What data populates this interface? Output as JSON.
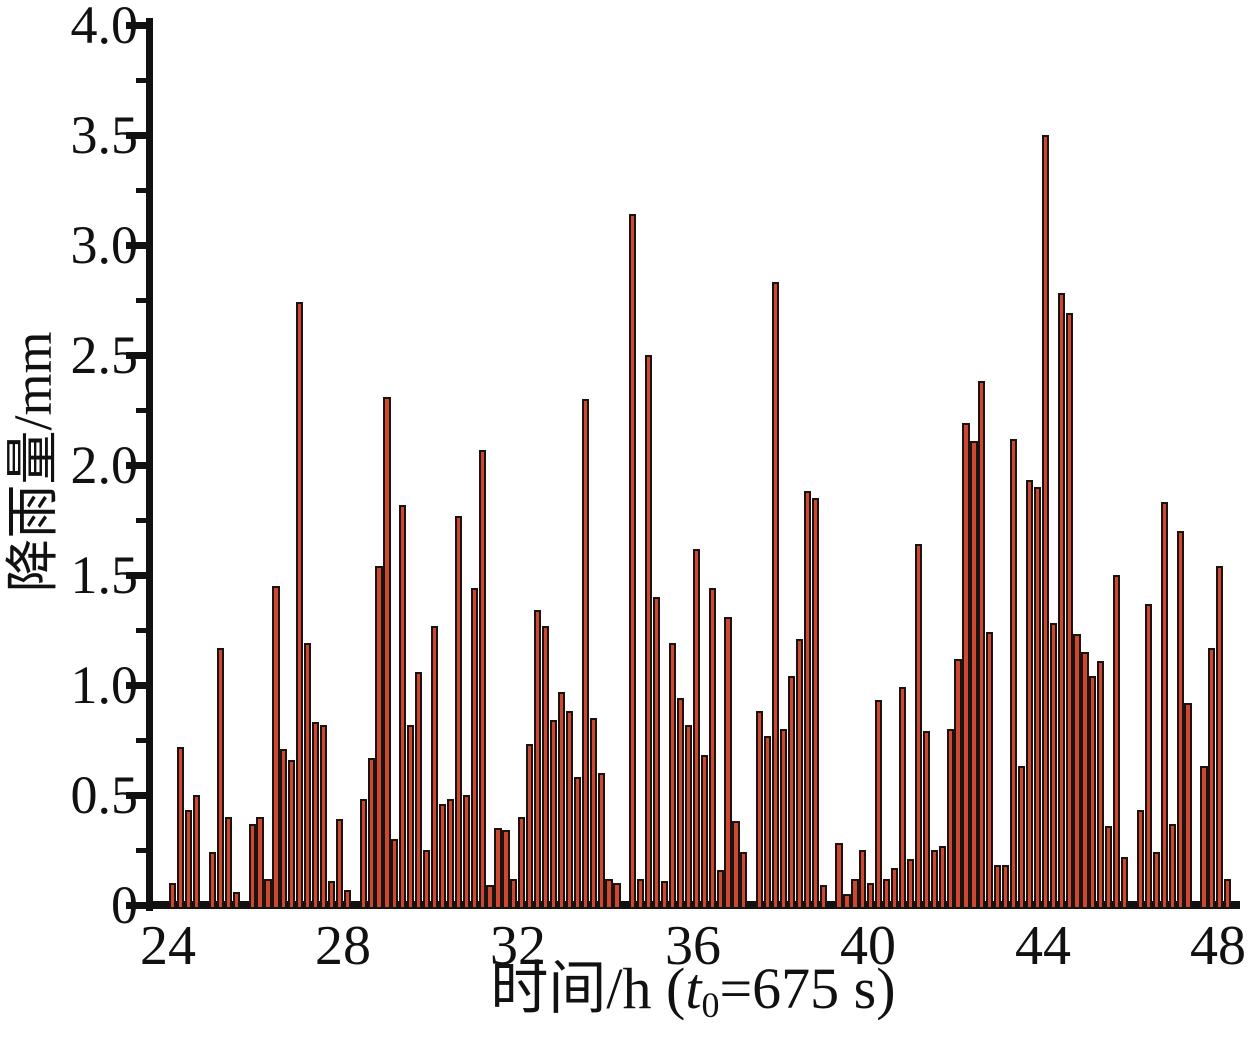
{
  "figure": {
    "y_axis_title": "降雨量/mm",
    "x_axis_title_full": "时间/h (t0=675 s)",
    "x_axis_title_prefix": "时间/h (",
    "x_axis_title_var": "t",
    "x_axis_title_sub": "0",
    "x_axis_title_suffix": "=675 s)"
  },
  "chart_data": {
    "type": "bar",
    "title": "",
    "xlabel": "时间/h (t0=675 s)",
    "ylabel": "降雨量/mm",
    "ylim": [
      0,
      4.0
    ],
    "xlim": [
      23.9,
      48.4
    ],
    "grid": false,
    "legend": null,
    "y_tick_step_major": 0.5,
    "y_tick_step_minor": 0.25,
    "y_tick_labels": [
      "0",
      "0.5",
      "1.0",
      "1.5",
      "2.0",
      "2.5",
      "3.0",
      "3.5",
      "4.0"
    ],
    "x_tick_labels": [
      "24",
      "28",
      "32",
      "36",
      "40",
      "44",
      "48"
    ],
    "x_ticks_hours": [
      24,
      28,
      32,
      36,
      40,
      44,
      48
    ],
    "bar_color": "#CE4732",
    "bar_border_color": "#1A1410",
    "x_unit": "h",
    "y_unit": "mm",
    "x_start_hour": 24.11,
    "x_step_hour": 0.1813,
    "values": [
      0.1,
      0.72,
      0.43,
      0.5,
      null,
      0.24,
      1.17,
      0.4,
      0.06,
      null,
      0.37,
      0.4,
      0.12,
      1.45,
      0.71,
      0.66,
      2.74,
      1.19,
      0.83,
      0.82,
      0.11,
      0.39,
      0.07,
      null,
      0.48,
      0.67,
      1.54,
      2.31,
      0.3,
      1.82,
      0.82,
      1.06,
      0.25,
      1.27,
      0.46,
      0.48,
      1.77,
      0.5,
      1.44,
      2.07,
      0.09,
      0.35,
      0.34,
      0.12,
      0.4,
      0.73,
      1.34,
      1.27,
      0.84,
      0.97,
      0.88,
      0.58,
      2.3,
      0.85,
      0.6,
      0.12,
      0.1,
      null,
      3.14,
      0.12,
      2.5,
      1.4,
      0.11,
      1.19,
      0.94,
      0.82,
      1.62,
      0.68,
      1.44,
      0.16,
      1.31,
      0.38,
      0.24,
      null,
      0.88,
      0.77,
      2.83,
      0.8,
      1.04,
      1.21,
      1.88,
      1.85,
      0.09,
      null,
      0.28,
      0.05,
      0.12,
      0.25,
      0.1,
      0.93,
      0.12,
      0.17,
      0.99,
      0.21,
      1.64,
      0.79,
      0.25,
      0.27,
      0.8,
      1.12,
      2.19,
      2.11,
      2.38,
      1.24,
      0.18,
      0.18,
      2.12,
      0.63,
      1.93,
      1.9,
      3.5,
      1.28,
      2.78,
      2.69,
      1.23,
      1.15,
      1.04,
      1.11,
      0.36,
      1.5,
      0.22,
      null,
      0.43,
      1.37,
      0.24,
      1.83,
      0.37,
      1.7,
      0.92,
      null,
      0.63,
      1.17,
      1.54,
      0.12
    ]
  }
}
